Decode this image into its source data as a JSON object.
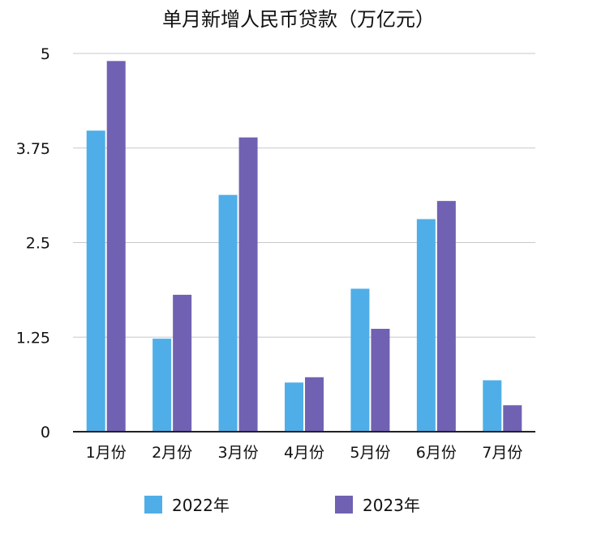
{
  "chart_data": {
    "type": "bar",
    "title": "单月新增人民币贷款（万亿元）",
    "xlabel": "",
    "ylabel": "",
    "categories": [
      "1月份",
      "2月份",
      "3月份",
      "4月份",
      "5月份",
      "6月份",
      "7月份"
    ],
    "series": [
      {
        "name": "2022年",
        "color": "#4faee8",
        "values": [
          3.98,
          1.23,
          3.13,
          0.65,
          1.89,
          2.81,
          0.68
        ]
      },
      {
        "name": "2023年",
        "color": "#7161b3",
        "values": [
          4.9,
          1.81,
          3.89,
          0.72,
          1.36,
          3.05,
          0.35
        ]
      }
    ],
    "ylim": [
      0,
      5
    ],
    "yticks": [
      "0",
      "1.25",
      "2.5",
      "3.75",
      "5"
    ],
    "grid": true,
    "legend": "bottom"
  }
}
